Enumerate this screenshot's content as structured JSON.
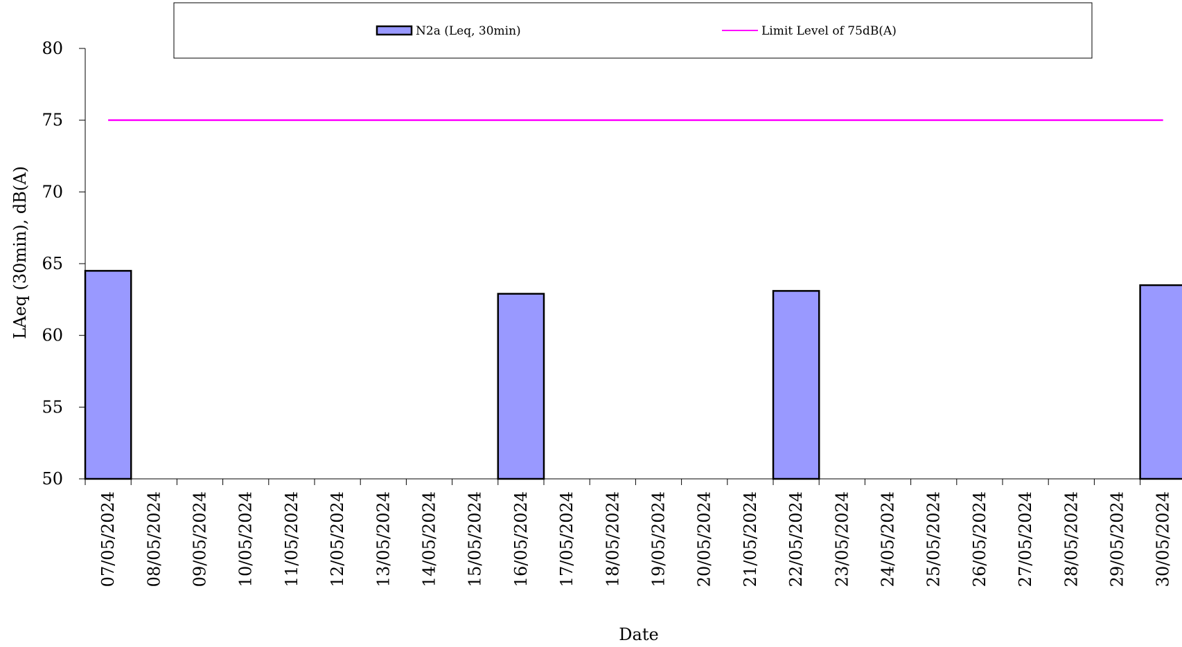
{
  "chart_data": {
    "type": "bar",
    "xlabel": "Date",
    "ylabel": "LAeq (30min), dB(A)",
    "ylim": [
      50,
      80
    ],
    "yticks": [
      50,
      55,
      60,
      65,
      70,
      75,
      80
    ],
    "grid": false,
    "legend_position": "top",
    "categories": [
      "07/05/2024",
      "08/05/2024",
      "09/05/2024",
      "10/05/2024",
      "11/05/2024",
      "12/05/2024",
      "13/05/2024",
      "14/05/2024",
      "15/05/2024",
      "16/05/2024",
      "17/05/2024",
      "18/05/2024",
      "19/05/2024",
      "20/05/2024",
      "21/05/2024",
      "22/05/2024",
      "23/05/2024",
      "24/05/2024",
      "25/05/2024",
      "26/05/2024",
      "27/05/2024",
      "28/05/2024",
      "29/05/2024",
      "30/05/2024"
    ],
    "series": [
      {
        "name": "N2a (Leq, 30min)",
        "type": "bar",
        "color": "#9999ff",
        "values": [
          64.5,
          null,
          null,
          null,
          null,
          null,
          null,
          null,
          null,
          62.9,
          null,
          null,
          null,
          null,
          null,
          63.1,
          null,
          null,
          null,
          null,
          null,
          null,
          null,
          63.5
        ]
      },
      {
        "name": "Limit Level of 75dB(A)",
        "type": "line",
        "color": "#ff00ff",
        "values": [
          75,
          75,
          75,
          75,
          75,
          75,
          75,
          75,
          75,
          75,
          75,
          75,
          75,
          75,
          75,
          75,
          75,
          75,
          75,
          75,
          75,
          75,
          75,
          75
        ]
      }
    ]
  }
}
